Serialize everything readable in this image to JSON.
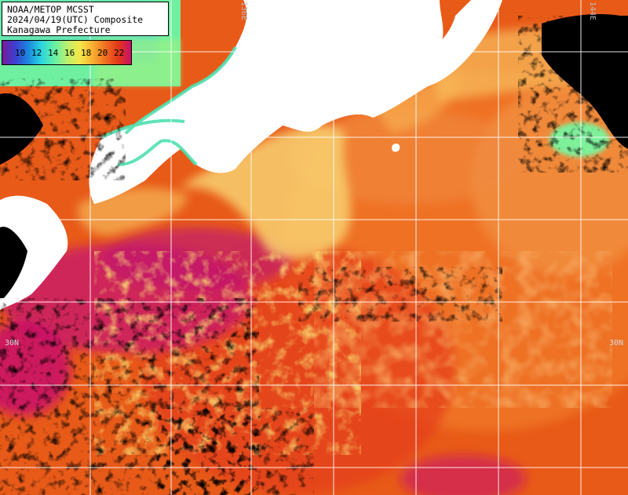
{
  "title": {
    "line1": "NOAA/METOP MCSST",
    "line2": "2024/04/19(UTC) Composite",
    "line3": "Kanagawa Prefecture"
  },
  "legend": {
    "labels": [
      "10",
      "12",
      "14",
      "16",
      "18",
      "20",
      "22"
    ],
    "colors": [
      "#7a1a9a",
      "#3c3fd0",
      "#1c86e0",
      "#2ad4e0",
      "#60f0a8",
      "#b8f070",
      "#f4e84a",
      "#f8b030",
      "#f07020",
      "#e23818",
      "#c8106a"
    ]
  },
  "grid": {
    "lat_label_left": "30N",
    "lat_label_right": "30N",
    "lon_label_top_a": "136E",
    "lon_label_top_b": "144E"
  },
  "colors": {
    "land": "#ffffff",
    "cloud": "#000000",
    "sea_warm": "#e85a18",
    "sea_hot": "#c82a6a",
    "coast_cool": "#60f0a8",
    "grid_line": "#ffffff"
  }
}
